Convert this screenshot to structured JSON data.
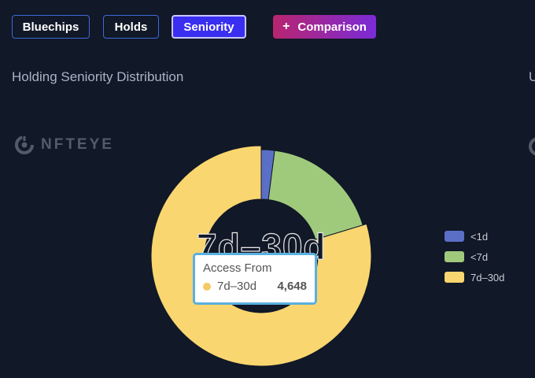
{
  "tabs": [
    {
      "label": "Bluechips",
      "active": false
    },
    {
      "label": "Holds",
      "active": false
    },
    {
      "label": "Seniority",
      "active": true
    }
  ],
  "comparison": {
    "label": "Comparison",
    "icon": "plus-icon"
  },
  "section": {
    "title": "Holding Seniority Distribution",
    "cut_char": "U"
  },
  "watermark": {
    "text": "NFTEYE",
    "icon": "nfteye-logo-icon"
  },
  "center_label": "7d–30d",
  "colors": {
    "background": "#111827",
    "tab_border": "#3d6ad8",
    "tab_active": "#3a2ef0"
  },
  "tooltip": {
    "title": "Access From",
    "name": "7d–30d",
    "value": "4,648",
    "color": "#f4ca64"
  },
  "chart_data": {
    "type": "pie",
    "donut": true,
    "series": [
      {
        "name": "<1d",
        "value": 118,
        "color": "#5b6fc7"
      },
      {
        "name": "<7d",
        "value": 1067,
        "color": "#9fca7c"
      },
      {
        "name": "7d–30d",
        "value": 4648,
        "color": "#f9d66f"
      }
    ],
    "legend_position": "right",
    "highlighted": "7d–30d"
  }
}
